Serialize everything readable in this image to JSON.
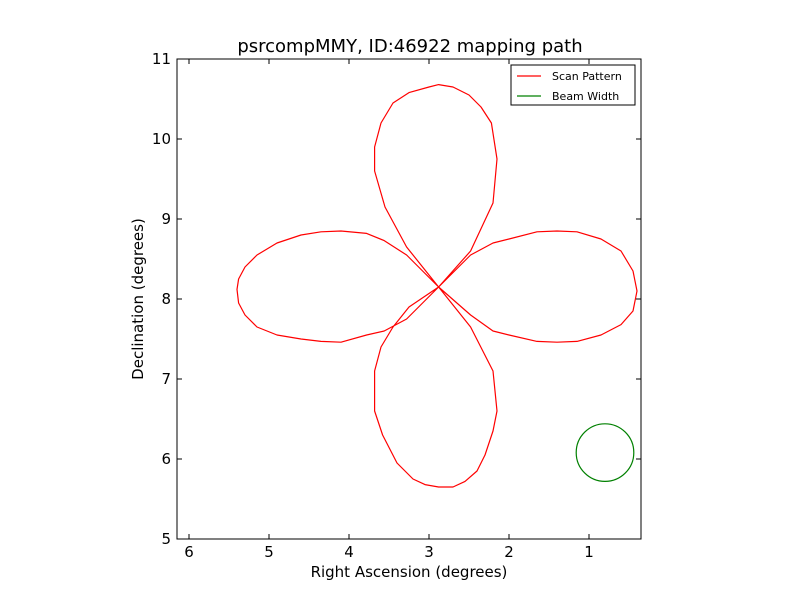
{
  "chart_data": {
    "type": "line",
    "title": "psrcompMMY, ID:46922 mapping path",
    "xlabel": "Right Ascension (degrees)",
    "ylabel": "Declination (degrees)",
    "xlim": [
      6.15,
      0.35
    ],
    "ylim": [
      5,
      11
    ],
    "x_inverted": true,
    "xticks": [
      6,
      5,
      4,
      3,
      2,
      1
    ],
    "xtick_labels": [
      "6",
      "5",
      "4",
      "3",
      "2",
      "1"
    ],
    "yticks": [
      5,
      6,
      7,
      8,
      9,
      10,
      11
    ],
    "ytick_labels": [
      "5",
      "6",
      "7",
      "8",
      "9",
      "10",
      "11"
    ],
    "grid": false,
    "legend_position": "top-right",
    "legend": [
      "Scan Pattern",
      "Beam Width"
    ],
    "series": [
      {
        "name": "Scan Pattern",
        "color": "#ff0000",
        "x": [
          2.88,
          2.48,
          2.2,
          2.15,
          2.2,
          2.3,
          2.4,
          2.55,
          2.7,
          2.88,
          3.05,
          3.2,
          3.4,
          3.58,
          3.68,
          3.68,
          3.6,
          3.45,
          3.25,
          2.88,
          2.48,
          2.2,
          2.0,
          1.65,
          1.4,
          1.15,
          0.85,
          0.6,
          0.45,
          0.4,
          0.45,
          0.6,
          0.85,
          1.15,
          1.4,
          1.65,
          2.0,
          2.2,
          2.48,
          2.88,
          3.28,
          3.56,
          3.78,
          4.1,
          4.35,
          4.6,
          4.9,
          5.15,
          5.3,
          5.38,
          5.4,
          5.38,
          5.3,
          5.15,
          4.9,
          4.6,
          4.35,
          4.1,
          3.78,
          3.56,
          3.28,
          2.88,
          3.28,
          3.55,
          3.68,
          3.68,
          3.6,
          3.45,
          3.25,
          3.0,
          2.88,
          2.7,
          2.5,
          2.35,
          2.22,
          2.15,
          2.2,
          2.48,
          2.88
        ],
        "y": [
          8.15,
          7.65,
          7.1,
          6.6,
          6.35,
          6.05,
          5.85,
          5.72,
          5.65,
          5.65,
          5.68,
          5.75,
          5.95,
          6.3,
          6.6,
          7.1,
          7.4,
          7.65,
          7.9,
          8.15,
          7.8,
          7.6,
          7.55,
          7.47,
          7.46,
          7.47,
          7.55,
          7.68,
          7.85,
          8.1,
          8.35,
          8.6,
          8.75,
          8.84,
          8.85,
          8.84,
          8.75,
          8.7,
          8.55,
          8.15,
          8.55,
          8.73,
          8.82,
          8.85,
          8.84,
          8.8,
          8.7,
          8.55,
          8.4,
          8.25,
          8.12,
          7.95,
          7.8,
          7.65,
          7.55,
          7.5,
          7.47,
          7.46,
          7.55,
          7.6,
          7.75,
          8.15,
          8.65,
          9.15,
          9.6,
          9.9,
          10.2,
          10.45,
          10.58,
          10.65,
          10.68,
          10.65,
          10.55,
          10.4,
          10.2,
          9.75,
          9.2,
          8.6,
          8.15
        ]
      },
      {
        "name": "Beam Width",
        "color": "#008000",
        "shape": "circle",
        "center": [
          0.8,
          6.08
        ],
        "radius": 0.36
      }
    ]
  }
}
